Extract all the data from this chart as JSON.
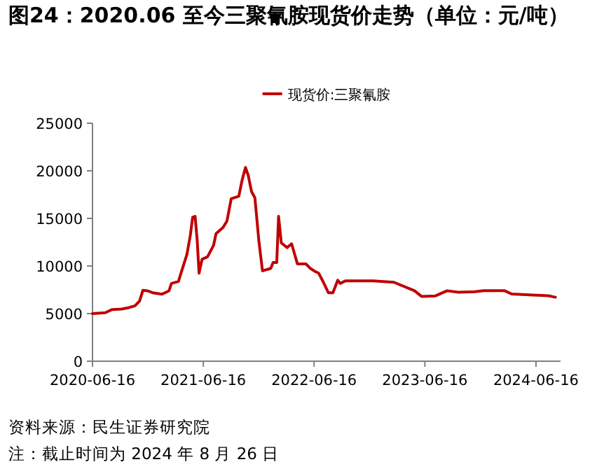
{
  "chart_data": {
    "type": "line",
    "title": "图24：2020.06 至今三聚氰胺现货价走势（单位：元/吨）",
    "x": [
      "2020-06-16",
      "2020-07-28",
      "2020-08-20",
      "2020-09-20",
      "2020-10-14",
      "2020-11-03",
      "2020-11-18",
      "2020-11-29",
      "2020-12-15",
      "2020-12-31",
      "2021-01-31",
      "2021-02-23",
      "2021-03-03",
      "2021-03-26",
      "2021-04-06",
      "2021-04-23",
      "2021-05-04",
      "2021-05-12",
      "2021-05-20",
      "2021-05-27",
      "2021-06-02",
      "2021-06-12",
      "2021-06-30",
      "2021-07-20",
      "2021-07-28",
      "2021-08-20",
      "2021-09-02",
      "2021-09-16",
      "2021-10-11",
      "2021-10-22",
      "2021-11-02",
      "2021-11-11",
      "2021-11-22",
      "2021-12-03",
      "2021-12-16",
      "2021-12-28",
      "2022-01-24",
      "2022-02-01",
      "2022-02-13",
      "2022-02-19",
      "2022-02-28",
      "2022-03-19",
      "2022-04-03",
      "2022-04-22",
      "2022-05-20",
      "2022-06-04",
      "2022-06-16",
      "2022-07-01",
      "2022-07-17",
      "2022-08-02",
      "2022-08-17",
      "2022-09-02",
      "2022-09-10",
      "2022-09-27",
      "2022-12-28",
      "2023-03-06",
      "2023-05-13",
      "2023-06-05",
      "2023-07-21",
      "2023-08-28",
      "2023-10-05",
      "2023-11-27",
      "2023-12-27",
      "2024-03-05",
      "2024-03-28",
      "2024-05-27",
      "2024-07-27",
      "2024-08-19"
    ],
    "series": [
      {
        "name": "现货价:三聚氰胺",
        "color": "#c00000",
        "values": [
          5000,
          5090,
          5430,
          5480,
          5630,
          5820,
          6310,
          7440,
          7390,
          7190,
          7040,
          7390,
          8170,
          8370,
          9490,
          11200,
          13160,
          15120,
          15220,
          12670,
          9250,
          10710,
          10960,
          12180,
          13400,
          14040,
          14730,
          17070,
          17320,
          19030,
          20350,
          19520,
          17810,
          17170,
          12670,
          9490,
          9740,
          10370,
          10370,
          15220,
          12430,
          11940,
          12330,
          10230,
          10230,
          9740,
          9490,
          9250,
          8270,
          7190,
          7190,
          8510,
          8170,
          8430,
          8430,
          8290,
          7400,
          6810,
          6860,
          7400,
          7250,
          7300,
          7400,
          7400,
          7060,
          6960,
          6870,
          6720
        ]
      }
    ],
    "xlim": [
      "2020-06-16",
      "2024-09-05"
    ],
    "xticks": [
      {
        "value": "2020-06-16",
        "label": "2020-06-16"
      },
      {
        "value": "2021-06-16",
        "label": "2021-06-16"
      },
      {
        "value": "2022-06-16",
        "label": "2022-06-16"
      },
      {
        "value": "2023-06-16",
        "label": "2023-06-16"
      },
      {
        "value": "2024-06-16",
        "label": "2024-06-16"
      }
    ],
    "ylim": [
      0,
      25000
    ],
    "yticks": [
      0,
      5000,
      10000,
      15000,
      20000,
      25000
    ],
    "legend": "top",
    "grid": false,
    "marker": "none",
    "line_style": "solid",
    "annotations": [
      "资料来源：民生证券研究院",
      "注：截止时间为 2024 年 8 月 26 日"
    ]
  }
}
